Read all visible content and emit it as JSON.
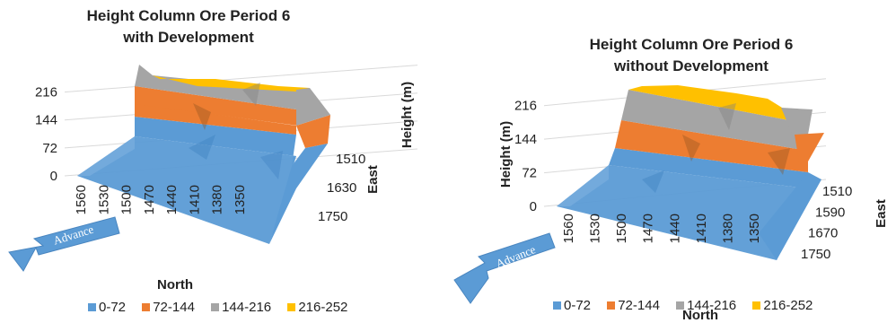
{
  "colors": {
    "band_0_72": "#5b9bd5",
    "band_72_144": "#ed7d31",
    "band_144_216": "#a5a5a5",
    "band_216_252": "#ffc000",
    "arrow": "#5b9bd5"
  },
  "chart_data": [
    {
      "type": "surface",
      "title_line1": "Height Column Ore Period 6",
      "title_line2": "with Development",
      "xlabel": "North",
      "ylabel": "East",
      "zlabel": "Height (m)",
      "north_ticks": [
        "1560",
        "1530",
        "1500",
        "1470",
        "1440",
        "1410",
        "1380",
        "1350"
      ],
      "east_ticks": [
        "1510",
        "1630",
        "1750"
      ],
      "z_ticks": [
        "0",
        "72",
        "144",
        "216"
      ],
      "zlim": [
        0,
        252
      ],
      "legend": [
        "0-72",
        "72-144",
        "144-216",
        "216-252"
      ],
      "arrow_label": "Advance"
    },
    {
      "type": "surface",
      "title_line1": "Height Column Ore Period 6",
      "title_line2": "without Development",
      "xlabel": "North",
      "ylabel": "East",
      "zlabel": "Height (m)",
      "north_ticks": [
        "1560",
        "1530",
        "1500",
        "1470",
        "1440",
        "1410",
        "1380",
        "1350"
      ],
      "east_ticks": [
        "1510",
        "1590",
        "1670",
        "1750"
      ],
      "z_ticks": [
        "0",
        "72",
        "144",
        "216"
      ],
      "zlim": [
        0,
        252
      ],
      "legend": [
        "0-72",
        "72-144",
        "144-216",
        "216-252"
      ],
      "arrow_label": "Advance"
    }
  ]
}
